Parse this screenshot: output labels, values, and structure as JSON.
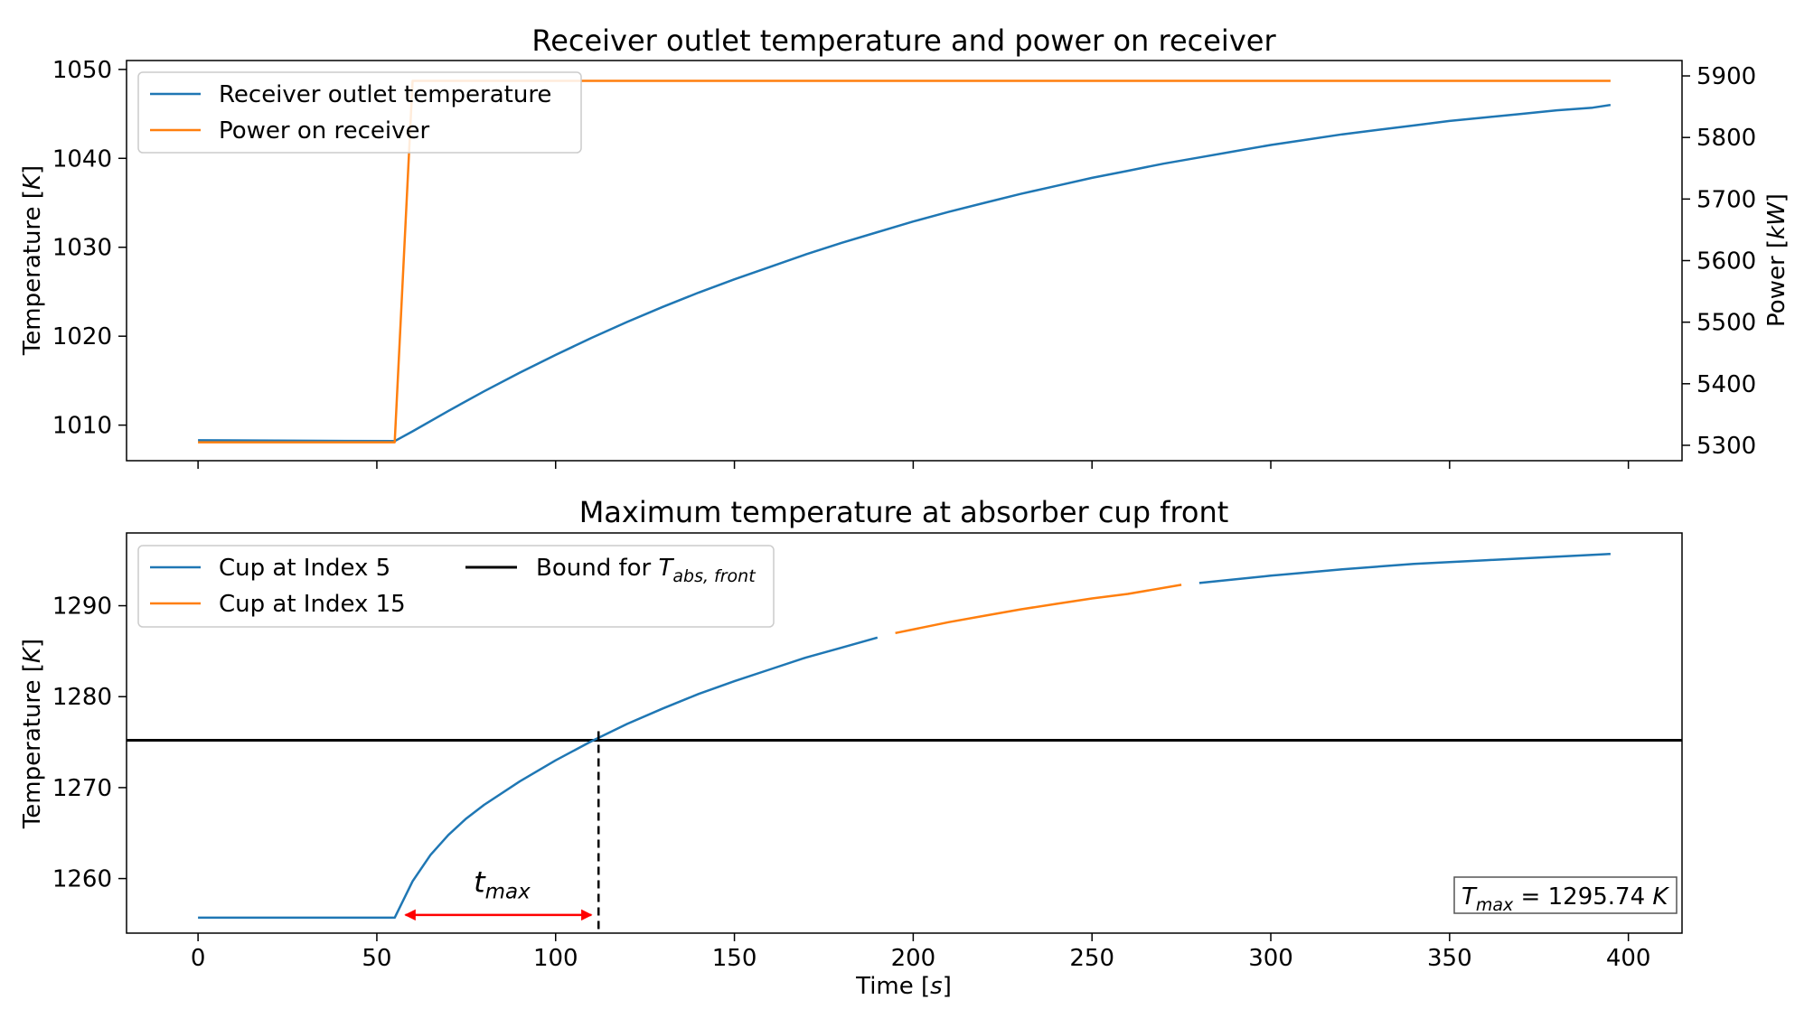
{
  "chart_data": [
    {
      "type": "line",
      "title": "Receiver outlet temperature and power on receiver",
      "ylabel": "Temperature [K]",
      "y2label": "Power [kW]",
      "xlim": [
        -20,
        415
      ],
      "ylim": [
        1006,
        1051
      ],
      "y2lim": [
        5275,
        5925
      ],
      "yticks": [
        1010,
        1020,
        1030,
        1040,
        1050
      ],
      "y2ticks": [
        5300,
        5400,
        5500,
        5600,
        5700,
        5800,
        5900
      ],
      "legend": {
        "placement": "upper-left"
      },
      "grid": false,
      "series": [
        {
          "name": "Receiver outlet temperature",
          "axis": "left",
          "color": "#1f77b4",
          "x": [
            0,
            55,
            60,
            70,
            80,
            90,
            100,
            110,
            120,
            130,
            140,
            150,
            160,
            170,
            180,
            190,
            200,
            210,
            220,
            230,
            240,
            250,
            260,
            270,
            280,
            290,
            300,
            310,
            320,
            330,
            340,
            350,
            360,
            370,
            380,
            390,
            395
          ],
          "y": [
            1008.3,
            1008.2,
            1009.3,
            1011.6,
            1013.8,
            1015.9,
            1017.9,
            1019.8,
            1021.6,
            1023.3,
            1024.9,
            1026.4,
            1027.8,
            1029.2,
            1030.5,
            1031.7,
            1032.9,
            1034.0,
            1035.0,
            1036.0,
            1036.9,
            1037.8,
            1038.6,
            1039.4,
            1040.1,
            1040.8,
            1041.5,
            1042.1,
            1042.7,
            1043.2,
            1043.7,
            1044.2,
            1044.6,
            1045.0,
            1045.4,
            1045.7,
            1046.0
          ]
        },
        {
          "name": "Power on receiver",
          "axis": "right",
          "color": "#ff7f0e",
          "x": [
            0,
            55,
            60,
            395
          ],
          "y": [
            5305,
            5305,
            5892,
            5892
          ]
        }
      ]
    },
    {
      "type": "line",
      "title": "Maximum temperature at absorber cup front",
      "xlabel": "Time [s]",
      "ylabel": "Temperature [K]",
      "xlim": [
        -20,
        415
      ],
      "ylim": [
        1254,
        1298
      ],
      "xticks": [
        0,
        50,
        100,
        150,
        200,
        250,
        300,
        350,
        400
      ],
      "yticks": [
        1260,
        1270,
        1280,
        1290
      ],
      "legend": {
        "placement": "upper-left",
        "columns": 2
      },
      "grid": false,
      "series": [
        {
          "name": "Cup at Index 5",
          "color": "#1f77b4",
          "segments": [
            {
              "x": [
                0,
                55,
                60,
                65,
                70,
                75,
                80,
                90,
                100,
                110,
                120,
                130,
                140,
                150,
                160,
                170,
                180,
                190
              ],
              "y": [
                1255.7,
                1255.7,
                1259.7,
                1262.6,
                1264.8,
                1266.6,
                1268.1,
                1270.7,
                1273.0,
                1275.1,
                1277.0,
                1278.7,
                1280.3,
                1281.7,
                1283.0,
                1284.3,
                1285.4,
                1286.5
              ]
            },
            {
              "x": [
                280,
                300,
                320,
                340,
                360,
                380,
                395
              ],
              "y": [
                1292.5,
                1293.3,
                1294.0,
                1294.6,
                1295.0,
                1295.4,
                1295.7
              ]
            }
          ]
        },
        {
          "name": "Cup at Index 15",
          "color": "#ff7f0e",
          "segments": [
            {
              "x": [
                195,
                210,
                220,
                230,
                240,
                250,
                260,
                275
              ],
              "y": [
                1287.0,
                1288.2,
                1288.9,
                1289.6,
                1290.2,
                1290.8,
                1291.3,
                1292.3
              ]
            }
          ]
        },
        {
          "name": "Bound for T_abs, front",
          "color": "#000000",
          "y_constant": 1275.2
        }
      ],
      "annotations": {
        "crossing_x": 112,
        "crossing_y_top": 1276.2,
        "arrow": {
          "x_start": 58,
          "x_end": 110,
          "y": 1256.0,
          "color": "#ff0000"
        },
        "tmax_label": {
          "main": "t",
          "sub": "max",
          "x": 85,
          "y": 1258.5
        },
        "tmax_box": {
          "main": "T",
          "sub": "max",
          "rest": " = 1295.74 ",
          "unit": "K"
        }
      }
    }
  ]
}
